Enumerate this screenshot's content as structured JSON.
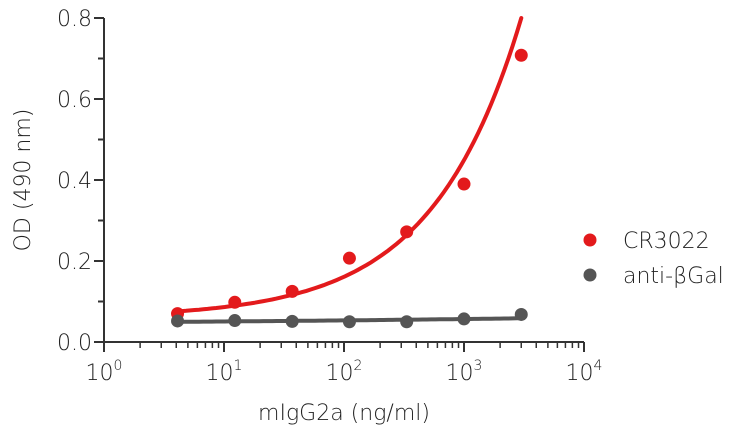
{
  "chart_data": {
    "type": "scatter",
    "x_scale": "log",
    "xlabel": "mIgG2a (ng/ml)",
    "ylabel": "OD (490 nm)",
    "xlim": [
      1,
      10000
    ],
    "ylim": [
      0.0,
      0.8
    ],
    "x_ticks": [
      {
        "value": 1,
        "base": "10",
        "exp": "0"
      },
      {
        "value": 10,
        "base": "10",
        "exp": "1"
      },
      {
        "value": 100,
        "base": "10",
        "exp": "2"
      },
      {
        "value": 1000,
        "base": "10",
        "exp": "3"
      },
      {
        "value": 10000,
        "base": "10",
        "exp": "4"
      }
    ],
    "y_ticks": [
      "0.0",
      "0.2",
      "0.4",
      "0.6",
      "0.8"
    ],
    "grid": false,
    "legend_position": "right",
    "series": [
      {
        "name": "CR3022",
        "color": "#e31a1c",
        "x": [
          4.1,
          12.3,
          37,
          111,
          333,
          1000,
          3000
        ],
        "y": [
          0.07,
          0.098,
          0.125,
          0.207,
          0.272,
          0.39,
          0.708
        ],
        "fit": true
      },
      {
        "name": "anti-βGal",
        "color": "#555555",
        "x": [
          4.1,
          12.3,
          37,
          111,
          333,
          1000,
          3000
        ],
        "y": [
          0.052,
          0.053,
          0.051,
          0.05,
          0.05,
          0.057,
          0.068
        ],
        "fit": true
      }
    ]
  }
}
